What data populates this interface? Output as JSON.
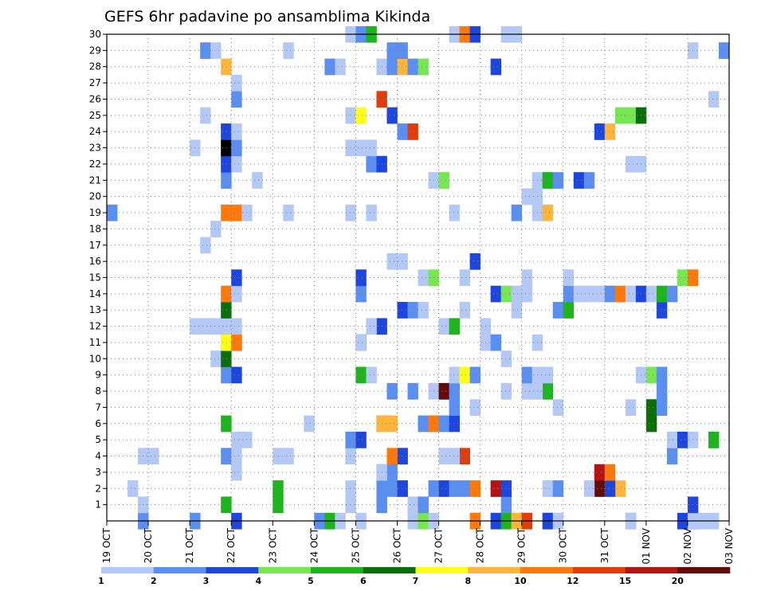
{
  "chart_data": {
    "type": "heatmap",
    "title": "GEFS 6hr padavine po ansamblima Kikinda",
    "xlabel": "",
    "ylabel": "",
    "x_ticks": [
      "19 OCT",
      "20 OCT",
      "21 OCT",
      "22 OCT",
      "23 OCT",
      "24 OCT",
      "25 OCT",
      "26 OCT",
      "27 OCT",
      "28 OCT",
      "29 OCT",
      "30 OCT",
      "31 OCT",
      "01 NOV",
      "02 NOV",
      "03 NOV"
    ],
    "y_ticks": [
      "1",
      "2",
      "3",
      "4",
      "5",
      "6",
      "7",
      "8",
      "9",
      "10",
      "11",
      "12",
      "13",
      "14",
      "15",
      "16",
      "17",
      "18",
      "19",
      "20",
      "21",
      "22",
      "23",
      "24",
      "25",
      "26",
      "27",
      "28",
      "29",
      "30"
    ],
    "ylim": [
      0,
      30
    ],
    "grid": true,
    "legend_placement": "bottom",
    "legend": {
      "labels": [
        "1",
        "2",
        "3",
        "4",
        "5",
        "6",
        "7",
        "8",
        "10",
        "12",
        "15",
        "20"
      ],
      "colors": [
        "#b4c8f5",
        "#5a8ef0",
        "#1e46dc",
        "#78e650",
        "#1eb41e",
        "#0a6e0a",
        "#ffff14",
        "#ffb43c",
        "#ff780a",
        "#e13c0a",
        "#b41414",
        "#640a0a"
      ]
    },
    "cells": [
      [
        0,
        1,
        3
      ],
      [
        0,
        2,
        3
      ],
      [
        0,
        2,
        8
      ],
      [
        0,
        3,
        12
      ],
      [
        0,
        2,
        20
      ],
      [
        0,
        5,
        21
      ],
      [
        0,
        1,
        22
      ],
      [
        0,
        1,
        24
      ],
      [
        0,
        1,
        29
      ],
      [
        0,
        4,
        30
      ],
      [
        0,
        1,
        31
      ],
      [
        0,
        9,
        35
      ],
      [
        0,
        3,
        37
      ],
      [
        0,
        5,
        38
      ],
      [
        0,
        8,
        39
      ],
      [
        0,
        7,
        40
      ],
      [
        0,
        10,
        40
      ],
      [
        0,
        1,
        42
      ],
      [
        0,
        3,
        42
      ],
      [
        0,
        1,
        43
      ],
      [
        0,
        2,
        50
      ],
      [
        0,
        1,
        50
      ],
      [
        0,
        3,
        55
      ],
      [
        0,
        2,
        56
      ],
      [
        0,
        1,
        56
      ],
      [
        0,
        1,
        57
      ],
      [
        0,
        1,
        58
      ],
      [
        1,
        1,
        3
      ],
      [
        1,
        5,
        11
      ],
      [
        1,
        5,
        16
      ],
      [
        1,
        1,
        23
      ],
      [
        1,
        2,
        26
      ],
      [
        1,
        1,
        29
      ],
      [
        1,
        1,
        30
      ],
      [
        1,
        3,
        56
      ],
      [
        1,
        2,
        38
      ],
      [
        1,
        2,
        30
      ],
      [
        2,
        1,
        2
      ],
      [
        2,
        5,
        16
      ],
      [
        2,
        1,
        23
      ],
      [
        2,
        2,
        26
      ],
      [
        2,
        2,
        27
      ],
      [
        2,
        3,
        28
      ],
      [
        2,
        2,
        31
      ],
      [
        2,
        3,
        32
      ],
      [
        2,
        2,
        33
      ],
      [
        2,
        2,
        34
      ],
      [
        2,
        9,
        35
      ],
      [
        2,
        11,
        37
      ],
      [
        2,
        3,
        38
      ],
      [
        2,
        1,
        42
      ],
      [
        2,
        2,
        43
      ],
      [
        2,
        8,
        49
      ],
      [
        2,
        12,
        47
      ],
      [
        2,
        1,
        46
      ],
      [
        2,
        3,
        48
      ],
      [
        3,
        2,
        26
      ],
      [
        3,
        2,
        27
      ],
      [
        3,
        1,
        26
      ],
      [
        3,
        11,
        47
      ],
      [
        3,
        9,
        48
      ],
      [
        3,
        1,
        12
      ],
      [
        4,
        1,
        3
      ],
      [
        4,
        1,
        4
      ],
      [
        4,
        2,
        11
      ],
      [
        4,
        1,
        12
      ],
      [
        4,
        1,
        16
      ],
      [
        4,
        1,
        17
      ],
      [
        4,
        1,
        23
      ],
      [
        4,
        3,
        28
      ],
      [
        4,
        9,
        27
      ],
      [
        4,
        1,
        32
      ],
      [
        4,
        10,
        34
      ],
      [
        4,
        1,
        33
      ],
      [
        4,
        2,
        54
      ],
      [
        5,
        1,
        12
      ],
      [
        5,
        1,
        13
      ],
      [
        5,
        2,
        23
      ],
      [
        5,
        3,
        24
      ],
      [
        5,
        1,
        54
      ],
      [
        5,
        1,
        58
      ],
      [
        5,
        3,
        55
      ],
      [
        5,
        5,
        58
      ],
      [
        5,
        1,
        56
      ],
      [
        6,
        1,
        26
      ],
      [
        6,
        5,
        11
      ],
      [
        6,
        1,
        19
      ],
      [
        6,
        5,
        26
      ],
      [
        6,
        8,
        26
      ],
      [
        6,
        8,
        27
      ],
      [
        6,
        2,
        30
      ],
      [
        6,
        5,
        31
      ],
      [
        6,
        9,
        31
      ],
      [
        6,
        1,
        32
      ],
      [
        6,
        2,
        32
      ],
      [
        6,
        3,
        33
      ],
      [
        6,
        6,
        52
      ],
      [
        7,
        2,
        33
      ],
      [
        7,
        1,
        35
      ],
      [
        7,
        1,
        43
      ],
      [
        7,
        1,
        50
      ],
      [
        7,
        6,
        52
      ],
      [
        7,
        2,
        53
      ],
      [
        8,
        2,
        27
      ],
      [
        8,
        2,
        29
      ],
      [
        8,
        1,
        31
      ],
      [
        8,
        1,
        32
      ],
      [
        8,
        12,
        32
      ],
      [
        8,
        2,
        33
      ],
      [
        8,
        1,
        38
      ],
      [
        8,
        1,
        40
      ],
      [
        8,
        5,
        42
      ],
      [
        8,
        1,
        41
      ],
      [
        8,
        2,
        53
      ],
      [
        9,
        2,
        11
      ],
      [
        9,
        3,
        12
      ],
      [
        9,
        5,
        24
      ],
      [
        9,
        1,
        25
      ],
      [
        9,
        1,
        33
      ],
      [
        9,
        7,
        34
      ],
      [
        9,
        2,
        35
      ],
      [
        9,
        2,
        40
      ],
      [
        9,
        1,
        41
      ],
      [
        9,
        1,
        42
      ],
      [
        9,
        1,
        51
      ],
      [
        9,
        4,
        52
      ],
      [
        9,
        2,
        53
      ],
      [
        10,
        1,
        10
      ],
      [
        10,
        6,
        11
      ],
      [
        10,
        1,
        38
      ],
      [
        11,
        2,
        11
      ],
      [
        11,
        3,
        12
      ],
      [
        11,
        3,
        24
      ],
      [
        11,
        7,
        11
      ],
      [
        11,
        9,
        12
      ],
      [
        11,
        1,
        24
      ],
      [
        11,
        1,
        36
      ],
      [
        11,
        2,
        37
      ],
      [
        11,
        1,
        41
      ],
      [
        12,
        1,
        8
      ],
      [
        12,
        1,
        9
      ],
      [
        12,
        1,
        10
      ],
      [
        12,
        1,
        11
      ],
      [
        12,
        1,
        12
      ],
      [
        12,
        3,
        26
      ],
      [
        12,
        1,
        25
      ],
      [
        12,
        1,
        32
      ],
      [
        12,
        5,
        33
      ],
      [
        12,
        1,
        36
      ],
      [
        13,
        6,
        11
      ],
      [
        13,
        3,
        28
      ],
      [
        13,
        2,
        29
      ],
      [
        13,
        1,
        30
      ],
      [
        13,
        1,
        34
      ],
      [
        13,
        1,
        39
      ],
      [
        13,
        2,
        43
      ],
      [
        13,
        5,
        44
      ],
      [
        13,
        3,
        53
      ],
      [
        14,
        9,
        11
      ],
      [
        14,
        1,
        12
      ],
      [
        14,
        2,
        24
      ],
      [
        14,
        3,
        37
      ],
      [
        14,
        4,
        38
      ],
      [
        14,
        1,
        39
      ],
      [
        14,
        1,
        40
      ],
      [
        14,
        2,
        44
      ],
      [
        14,
        1,
        45
      ],
      [
        14,
        1,
        46
      ],
      [
        14,
        1,
        47
      ],
      [
        14,
        2,
        48
      ],
      [
        14,
        9,
        49
      ],
      [
        14,
        1,
        50
      ],
      [
        14,
        3,
        51
      ],
      [
        14,
        1,
        52
      ],
      [
        14,
        5,
        53
      ],
      [
        14,
        2,
        54
      ],
      [
        15,
        3,
        12
      ],
      [
        15,
        3,
        24
      ],
      [
        15,
        1,
        30
      ],
      [
        15,
        4,
        31
      ],
      [
        15,
        1,
        34
      ],
      [
        15,
        1,
        40
      ],
      [
        15,
        1,
        44
      ],
      [
        15,
        4,
        55
      ],
      [
        15,
        9,
        56
      ],
      [
        16,
        1,
        27
      ],
      [
        16,
        1,
        28
      ],
      [
        16,
        3,
        35
      ],
      [
        17,
        1,
        9
      ],
      [
        18,
        1,
        10
      ],
      [
        19,
        2,
        0
      ],
      [
        19,
        9,
        11
      ],
      [
        19,
        9,
        12
      ],
      [
        19,
        1,
        13
      ],
      [
        19,
        1,
        17
      ],
      [
        19,
        1,
        23
      ],
      [
        19,
        1,
        25
      ],
      [
        19,
        1,
        33
      ],
      [
        19,
        2,
        39
      ],
      [
        19,
        1,
        41
      ],
      [
        19,
        8,
        42
      ],
      [
        20,
        1,
        40
      ],
      [
        20,
        1,
        41
      ],
      [
        21,
        2,
        11
      ],
      [
        21,
        1,
        14
      ],
      [
        21,
        1,
        31
      ],
      [
        21,
        4,
        32
      ],
      [
        21,
        1,
        41
      ],
      [
        21,
        5,
        42
      ],
      [
        21,
        2,
        43
      ],
      [
        21,
        3,
        45
      ],
      [
        21,
        2,
        46
      ],
      [
        22,
        3,
        11
      ],
      [
        22,
        1,
        12
      ],
      [
        22,
        2,
        25
      ],
      [
        22,
        3,
        26
      ],
      [
        22,
        1,
        50
      ],
      [
        22,
        1,
        51
      ],
      [
        23,
        1,
        8
      ],
      [
        23,
        13,
        11
      ],
      [
        23,
        2,
        12
      ],
      [
        23,
        1,
        23
      ],
      [
        23,
        1,
        24
      ],
      [
        23,
        1,
        25
      ],
      [
        24,
        3,
        11
      ],
      [
        24,
        1,
        12
      ],
      [
        24,
        2,
        28
      ],
      [
        24,
        10,
        29
      ],
      [
        24,
        3,
        47
      ],
      [
        24,
        8,
        48
      ],
      [
        25,
        1,
        9
      ],
      [
        25,
        1,
        23
      ],
      [
        25,
        7,
        24
      ],
      [
        25,
        3,
        27
      ],
      [
        25,
        4,
        49
      ],
      [
        25,
        4,
        50
      ],
      [
        25,
        6,
        51
      ],
      [
        26,
        2,
        12
      ],
      [
        26,
        10,
        26
      ],
      [
        26,
        1,
        58
      ],
      [
        27,
        1,
        12
      ],
      [
        28,
        8,
        11
      ],
      [
        28,
        2,
        21
      ],
      [
        28,
        1,
        22
      ],
      [
        28,
        1,
        26
      ],
      [
        28,
        2,
        27
      ],
      [
        28,
        8,
        28
      ],
      [
        28,
        2,
        29
      ],
      [
        28,
        4,
        30
      ],
      [
        28,
        3,
        37
      ],
      [
        29,
        2,
        9
      ],
      [
        29,
        1,
        10
      ],
      [
        29,
        1,
        17
      ],
      [
        29,
        2,
        27
      ],
      [
        29,
        2,
        28
      ],
      [
        29,
        1,
        56
      ],
      [
        29,
        2,
        59
      ],
      [
        30,
        1,
        23
      ],
      [
        30,
        2,
        24
      ],
      [
        30,
        5,
        25
      ],
      [
        30,
        1,
        33
      ],
      [
        30,
        9,
        34
      ],
      [
        30,
        3,
        35
      ],
      [
        30,
        1,
        38
      ],
      [
        30,
        1,
        39
      ]
    ]
  }
}
